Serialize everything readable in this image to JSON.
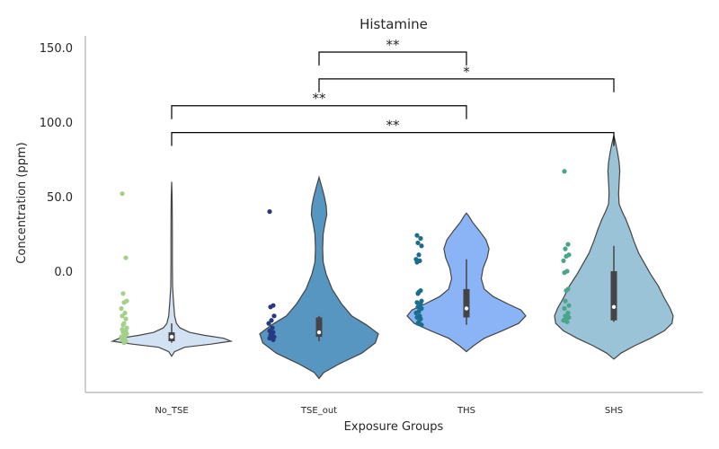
{
  "chart_data": {
    "type": "violin",
    "title": "Histamine",
    "xlabel": "Exposure Groups",
    "ylabel": "Concentration (ppm)",
    "ylim": [
      -82,
      160
    ],
    "yticks": [
      {
        "value": 0,
        "label": "0.0"
      },
      {
        "value": 50,
        "label": "50.0"
      },
      {
        "value": 100,
        "label": "100.0"
      },
      {
        "value": 150,
        "label": "150.0"
      }
    ],
    "categories": [
      "No_TSE",
      "TSE_out",
      "THS",
      "SHS"
    ],
    "violin_colors": [
      "#d3e2f3",
      "#5896c2",
      "#8ab4f5",
      "#9bc3d8"
    ],
    "point_colors": [
      "#a4d08a",
      "#27397f",
      "#1b6d8c",
      "#4aa58a"
    ],
    "groups": [
      {
        "name": "No_TSE",
        "median": -44,
        "q1": -47,
        "q3": -41,
        "whisker_low": -48,
        "whisker_high": -35,
        "density": [
          [
            -57,
            0
          ],
          [
            -54,
            0.05
          ],
          [
            -51,
            0.22
          ],
          [
            -49,
            0.65
          ],
          [
            -47,
            1.0
          ],
          [
            -45,
            0.88
          ],
          [
            -43,
            0.55
          ],
          [
            -41,
            0.3
          ],
          [
            -38,
            0.14
          ],
          [
            -35,
            0.08
          ],
          [
            -30,
            0.05
          ],
          [
            -20,
            0.03
          ],
          [
            -10,
            0.015
          ],
          [
            5,
            0.012
          ],
          [
            20,
            0.012
          ],
          [
            35,
            0.01
          ],
          [
            50,
            0.008
          ],
          [
            60,
            0
          ]
        ],
        "points": [
          52,
          9,
          -15,
          -20,
          -21,
          -25,
          -28,
          -30,
          -32,
          -35,
          -36,
          -38,
          -39,
          -40,
          -41,
          -42,
          -43,
          -44,
          -45,
          -46,
          -47,
          -48
        ]
      },
      {
        "name": "TSE_out",
        "median": -41,
        "q1": -44,
        "q3": -31,
        "whisker_low": -47,
        "whisker_high": -30,
        "density": [
          [
            -72,
            0
          ],
          [
            -68,
            0.08
          ],
          [
            -62,
            0.35
          ],
          [
            -55,
            0.72
          ],
          [
            -48,
            0.95
          ],
          [
            -42,
            1.0
          ],
          [
            -36,
            0.8
          ],
          [
            -30,
            0.55
          ],
          [
            -22,
            0.38
          ],
          [
            -12,
            0.22
          ],
          [
            -2,
            0.12
          ],
          [
            6,
            0.07
          ],
          [
            15,
            0.06
          ],
          [
            25,
            0.07
          ],
          [
            32,
            0.1
          ],
          [
            38,
            0.13
          ],
          [
            44,
            0.12
          ],
          [
            50,
            0.09
          ],
          [
            56,
            0.05
          ],
          [
            63,
            0
          ]
        ],
        "points": [
          40,
          -23,
          -24,
          -30,
          -33,
          -35,
          -38,
          -40,
          -41,
          -42,
          -43,
          -44,
          -45,
          -46
        ]
      },
      {
        "name": "THS",
        "median": -25,
        "q1": -31,
        "q3": -12,
        "whisker_low": -36,
        "whisker_high": 8,
        "density": [
          [
            -54,
            0
          ],
          [
            -50,
            0.12
          ],
          [
            -45,
            0.3
          ],
          [
            -40,
            0.6
          ],
          [
            -35,
            0.88
          ],
          [
            -30,
            1.0
          ],
          [
            -26,
            0.92
          ],
          [
            -22,
            0.7
          ],
          [
            -17,
            0.45
          ],
          [
            -12,
            0.3
          ],
          [
            -5,
            0.25
          ],
          [
            2,
            0.28
          ],
          [
            9,
            0.35
          ],
          [
            15,
            0.38
          ],
          [
            21,
            0.33
          ],
          [
            27,
            0.22
          ],
          [
            33,
            0.1
          ],
          [
            37,
            0.04
          ],
          [
            39,
            0
          ]
        ],
        "points": [
          24,
          22,
          19,
          17,
          11,
          8,
          7,
          6,
          -13,
          -14,
          -15,
          -20,
          -21,
          -22,
          -24,
          -25,
          -27,
          -28,
          -30,
          -31,
          -32,
          -34,
          -35,
          -36
        ]
      },
      {
        "name": "SHS",
        "median": -24,
        "q1": -33,
        "q3": 0,
        "whisker_low": -34,
        "whisker_high": 17,
        "density": [
          [
            -59,
            0
          ],
          [
            -55,
            0.12
          ],
          [
            -50,
            0.35
          ],
          [
            -45,
            0.62
          ],
          [
            -40,
            0.85
          ],
          [
            -35,
            0.98
          ],
          [
            -30,
            1.0
          ],
          [
            -25,
            0.95
          ],
          [
            -18,
            0.85
          ],
          [
            -10,
            0.75
          ],
          [
            -2,
            0.62
          ],
          [
            5,
            0.52
          ],
          [
            12,
            0.42
          ],
          [
            20,
            0.34
          ],
          [
            28,
            0.27
          ],
          [
            35,
            0.2
          ],
          [
            40,
            0.14
          ],
          [
            45,
            0.09
          ],
          [
            52,
            0.08
          ],
          [
            60,
            0.09
          ],
          [
            67,
            0.1
          ],
          [
            73,
            0.09
          ],
          [
            80,
            0.06
          ],
          [
            86,
            0.03
          ],
          [
            91,
            0
          ]
        ],
        "points": [
          67,
          18,
          15,
          11,
          10,
          7,
          0,
          -1,
          -12,
          -13,
          -20,
          -23,
          -25,
          -28,
          -30,
          -31,
          -32,
          -33,
          -34
        ]
      }
    ],
    "significance": [
      {
        "from": "TSE_out",
        "to": "THS",
        "label": "**",
        "y": 147,
        "drop": 9
      },
      {
        "from": "TSE_out",
        "to": "SHS",
        "label": "*",
        "y": 129,
        "drop": 9
      },
      {
        "from": "No_TSE",
        "to": "THS",
        "label": "**",
        "y": 111,
        "drop": 9
      },
      {
        "from": "No_TSE",
        "to": "SHS",
        "label": "**",
        "y": 93,
        "drop": 9
      }
    ]
  }
}
